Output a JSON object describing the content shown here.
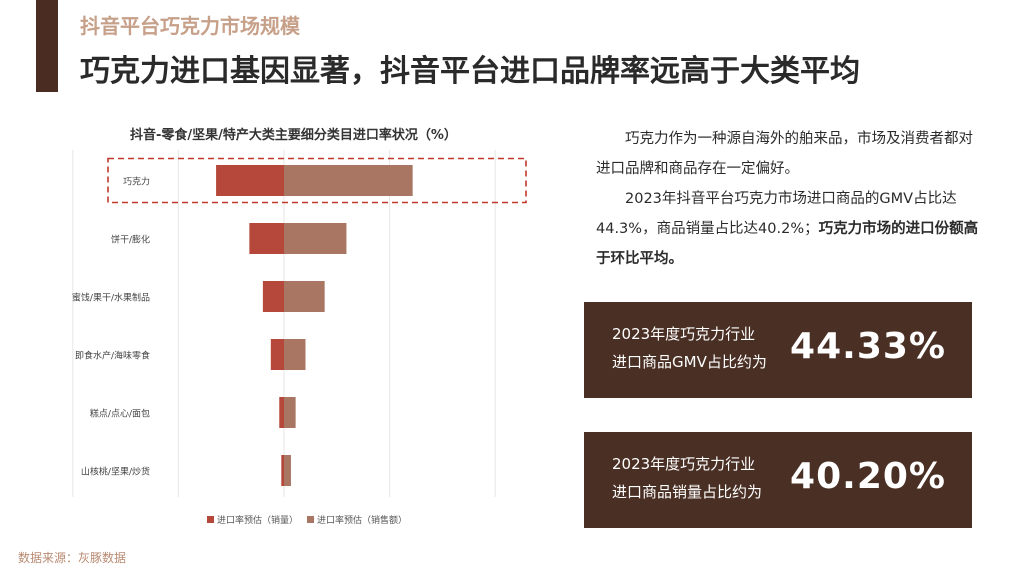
{
  "header": {
    "subtitle": "抖音平台巧克力市场规模",
    "title": "巧克力进口基因显著，抖音平台进口品牌率远高于大类平均"
  },
  "colors": {
    "accent": "#4a2c22",
    "series_sales_volume": "#b5483a",
    "series_sales_value": "#a87663",
    "highlight_border": "#c0392b",
    "stat_box": "#4a2f24"
  },
  "chart_data": {
    "type": "bar",
    "title": "抖音-零食/坚果/特产大类主要细分类目进口率状况（%）",
    "categories": [
      "巧克力",
      "饼干/膨化",
      "蜜饯/果干/水果制品",
      "即食水产/海味零食",
      "糕点/点心/面包",
      "山核桃/坚果/炒货"
    ],
    "highlight": "巧克力",
    "series": [
      {
        "name": "进口率预估（销量）",
        "values": [
          40.2,
          20.5,
          12.5,
          7.8,
          2.8,
          1.6
        ]
      },
      {
        "name": "进口率预估（销售额）",
        "values": [
          44.3,
          21.5,
          14.0,
          7.4,
          4.0,
          2.4
        ]
      }
    ],
    "legend_position": "bottom",
    "grid": true
  },
  "source": "数据来源：灰豚数据",
  "paragraph1": "巧克力作为一种源自海外的舶来品，市场及消费者都对进口品牌和商品存在一定偏好。",
  "paragraph2_normal": "2023年抖音平台巧克力市场进口商品的GMV占比达44.3%，商品销量占比达40.2%；",
  "paragraph2_bold": "巧克力市场的进口份额高于环比平均。",
  "stats": [
    {
      "line1": "2023年度巧克力行业",
      "line2": "进口商品GMV占比约为",
      "value": "44.33%"
    },
    {
      "line1": "2023年度巧克力行业",
      "line2": "进口商品销量占比约为",
      "value": "40.20%"
    }
  ]
}
